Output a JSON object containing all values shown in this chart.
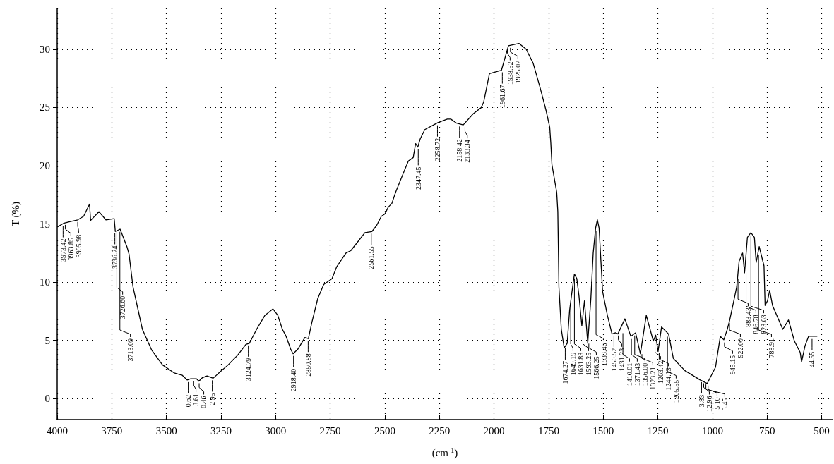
{
  "chart_data": {
    "type": "line",
    "xlabel": "(cm$^{-1}$)",
    "ylabel": "T (%)",
    "xlim": [
      4000,
      450
    ],
    "xticks": [
      4000,
      3750,
      3500,
      3250,
      3000,
      2750,
      2500,
      2250,
      2000,
      1750,
      1500,
      1250,
      1000,
      750,
      500
    ],
    "ylim": [
      -1.8,
      33.5
    ],
    "yticks": [
      0,
      5,
      10,
      15,
      20,
      25,
      30
    ],
    "grid": true,
    "marker": "none",
    "line_style": "solid",
    "series": [
      {
        "color": "#000000",
        "x": [
          3998,
          3971,
          3939,
          3906,
          3879,
          3852,
          3847,
          3809,
          3777,
          3739,
          3734,
          3712,
          3680,
          3671,
          3653,
          3610,
          3567,
          3518,
          3464,
          3427,
          3405,
          3389,
          3362,
          3351,
          3335,
          3314,
          3286,
          3254,
          3217,
          3173,
          3136,
          3120,
          3087,
          3049,
          3012,
          2990,
          2969,
          2952,
          2931,
          2920,
          2898,
          2866,
          2850,
          2834,
          2807,
          2780,
          2742,
          2721,
          2678,
          2656,
          2591,
          2559,
          2538,
          2516,
          2500,
          2484,
          2468,
          2451,
          2408,
          2392,
          2370,
          2359,
          2349,
          2338,
          2317,
          2257,
          2214,
          2198,
          2171,
          2141,
          2096,
          2058,
          2047,
          2021,
          1966,
          1934,
          1886,
          1853,
          1821,
          1789,
          1762,
          1745,
          1740,
          1735,
          1713,
          1708,
          1703,
          1692,
          1679,
          1665,
          1654,
          1643,
          1632,
          1621,
          1611,
          1598,
          1586,
          1571,
          1557,
          1546,
          1535,
          1527,
          1519,
          1503,
          1481,
          1460,
          1444,
          1433,
          1401,
          1374,
          1352,
          1330,
          1303,
          1271,
          1260,
          1249,
          1233,
          1201,
          1179,
          1126,
          1056,
          1024,
          986,
          964,
          948,
          932,
          921,
          900,
          889,
          878,
          862,
          853,
          840,
          824,
          808,
          800,
          786,
          764,
          759,
          748,
          738,
          725,
          678,
          652,
          625,
          598,
          592,
          576,
          560,
          522
        ],
        "values": [
          14.75,
          15.05,
          15.2,
          15.35,
          15.65,
          16.7,
          15.3,
          16.05,
          15.35,
          15.45,
          14.35,
          14.55,
          13.0,
          12.4,
          9.6,
          5.95,
          4.15,
          2.9,
          2.2,
          2.0,
          1.6,
          1.7,
          1.7,
          1.5,
          1.8,
          1.95,
          1.75,
          2.3,
          2.9,
          3.75,
          4.65,
          4.75,
          5.95,
          7.15,
          7.7,
          7.15,
          5.95,
          5.35,
          4.25,
          3.85,
          4.25,
          5.25,
          5.15,
          6.55,
          8.6,
          9.8,
          10.3,
          11.3,
          12.5,
          12.7,
          14.25,
          14.35,
          14.85,
          15.65,
          15.85,
          16.45,
          16.75,
          17.7,
          19.7,
          20.4,
          20.7,
          21.9,
          21.6,
          22.3,
          23.1,
          23.7,
          24.0,
          24.0,
          23.65,
          23.5,
          24.45,
          25.0,
          25.5,
          27.9,
          28.2,
          30.3,
          30.5,
          30.0,
          28.8,
          26.7,
          24.75,
          23.3,
          21.9,
          20.1,
          17.7,
          16.05,
          9.6,
          5.95,
          4.35,
          4.75,
          7.6,
          9.2,
          10.7,
          10.3,
          8.8,
          6.25,
          8.4,
          4.75,
          8.5,
          12.5,
          14.65,
          15.35,
          14.65,
          9.2,
          7.15,
          5.55,
          5.65,
          5.55,
          6.85,
          5.35,
          5.65,
          3.85,
          7.15,
          4.95,
          5.45,
          4.05,
          6.15,
          5.55,
          3.45,
          2.4,
          1.6,
          1.3,
          2.7,
          5.35,
          5.05,
          5.95,
          6.75,
          8.6,
          9.6,
          11.8,
          12.5,
          10.8,
          13.85,
          14.25,
          13.85,
          11.7,
          13.05,
          11.4,
          8.0,
          8.4,
          9.3,
          8.0,
          5.95,
          6.75,
          4.95,
          3.95,
          3.15,
          4.55,
          5.35,
          5.35
        ]
      }
    ],
    "annotations": [
      {
        "text": "3973.42",
        "x": 3973,
        "y": 15.0
      },
      {
        "text": "3963.85",
        "x": 3963,
        "y": 15.1
      },
      {
        "text": "3905.98",
        "x": 3906,
        "y": 15.35
      },
      {
        "text": "3736.24",
        "x": 3736,
        "y": 14.4
      },
      {
        "text": "3726.60",
        "x": 3727,
        "y": 14.5
      },
      {
        "text": "3713.09",
        "x": 3713,
        "y": 14.5
      },
      {
        "text": "0.62",
        "x": 3400,
        "y": 1.6
      },
      {
        "text": "3.61",
        "x": 3375,
        "y": 1.7
      },
      {
        "text": "0.46",
        "x": 3350,
        "y": 1.5
      },
      {
        "text": "2.95",
        "x": 3290,
        "y": 1.75
      },
      {
        "text": "3124.79",
        "x": 3125,
        "y": 4.75
      },
      {
        "text": "2918.40",
        "x": 2918,
        "y": 3.85
      },
      {
        "text": "2850.88",
        "x": 2851,
        "y": 5.15
      },
      {
        "text": "2561.55",
        "x": 2562,
        "y": 14.35
      },
      {
        "text": "2347.45",
        "x": 2347,
        "y": 21.6
      },
      {
        "text": "2258.72",
        "x": 2259,
        "y": 23.65
      },
      {
        "text": "2158.42",
        "x": 2158,
        "y": 23.55
      },
      {
        "text": "2133.34",
        "x": 2133,
        "y": 23.5
      },
      {
        "text": "1961.67",
        "x": 1962,
        "y": 28.2
      },
      {
        "text": "1938.52",
        "x": 1939,
        "y": 30.2
      },
      {
        "text": "1925.02",
        "x": 1925,
        "y": 30.3
      },
      {
        "text": "1674.27",
        "x": 1674,
        "y": 4.5
      },
      {
        "text": "1649.19",
        "x": 1649,
        "y": 8.0
      },
      {
        "text": "1631.83",
        "x": 1632,
        "y": 10.5
      },
      {
        "text": "1593.25",
        "x": 1593,
        "y": 6.3
      },
      {
        "text": "1566.25",
        "x": 1566,
        "y": 4.9
      },
      {
        "text": "1533.46",
        "x": 1533,
        "y": 14.6
      },
      {
        "text": "1450.52",
        "x": 1451,
        "y": 5.6
      },
      {
        "text": "1431.23",
        "x": 1431,
        "y": 5.6
      },
      {
        "text": "1410.01",
        "x": 1410,
        "y": 5.8
      },
      {
        "text": "1371.43",
        "x": 1371,
        "y": 5.3
      },
      {
        "text": "1356.00",
        "x": 1356,
        "y": 5.6
      },
      {
        "text": "1323.21",
        "x": 1323,
        "y": 4.0
      },
      {
        "text": "1263.42",
        "x": 1263,
        "y": 5.3
      },
      {
        "text": "1244.13",
        "x": 1244,
        "y": 4.1
      },
      {
        "text": "1205.55",
        "x": 1206,
        "y": 5.5
      },
      {
        "text": "3.83",
        "x": 1050,
        "y": 1.6
      },
      {
        "text": "12.96",
        "x": 1040,
        "y": 1.5
      },
      {
        "text": "5.10",
        "x": 1030,
        "y": 1.4
      },
      {
        "text": "3.45",
        "x": 1020,
        "y": 1.3
      },
      {
        "text": "945.15",
        "x": 945,
        "y": 5.0
      },
      {
        "text": "922.00",
        "x": 922,
        "y": 6.7
      },
      {
        "text": "883.43",
        "x": 883,
        "y": 10.5
      },
      {
        "text": "846.78",
        "x": 846,
        "y": 11.0
      },
      {
        "text": "823.63",
        "x": 824,
        "y": 14.2
      },
      {
        "text": "788.91",
        "x": 789,
        "y": 12.5
      },
      {
        "text": "44.55",
        "x": 544,
        "y": 5.3
      }
    ]
  }
}
